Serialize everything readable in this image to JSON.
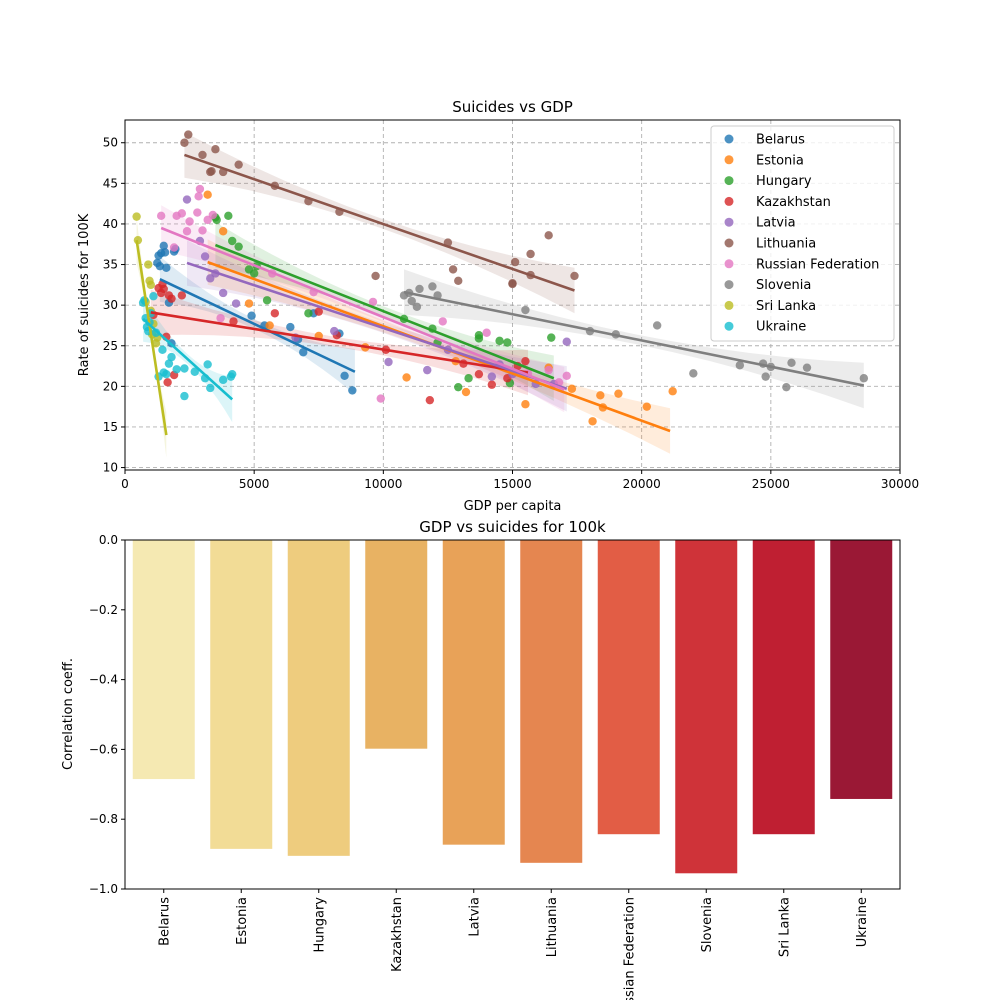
{
  "chart_data": [
    {
      "type": "scatter",
      "title": "Suicides vs GDP",
      "xlabel": "GDP per capita",
      "ylabel": "Rate of suicides for 100K",
      "xlim": [
        0,
        30000
      ],
      "ylim": [
        9.7,
        52.8
      ],
      "xticks": [
        0,
        5000,
        10000,
        15000,
        20000,
        25000,
        30000
      ],
      "yticks": [
        10,
        15,
        20,
        25,
        30,
        35,
        40,
        45,
        50
      ],
      "grid": true,
      "legend": "top-right",
      "series": [
        {
          "name": "Belarus",
          "color": "#1f77b4",
          "points": [
            [
              1250,
              35.2
            ],
            [
              1300,
              36.1
            ],
            [
              1350,
              34.8
            ],
            [
              1400,
              36.4
            ],
            [
              1500,
              37.3
            ],
            [
              1550,
              36.5
            ],
            [
              1600,
              34.6
            ],
            [
              1700,
              30.3
            ],
            [
              1800,
              25.3
            ],
            [
              1900,
              36.6
            ],
            [
              1950,
              36.9
            ],
            [
              4900,
              28.7
            ],
            [
              5400,
              27.5
            ],
            [
              6400,
              27.3
            ],
            [
              6700,
              25.8
            ],
            [
              6900,
              24.2
            ],
            [
              7300,
              29.0
            ],
            [
              8300,
              26.5
            ],
            [
              8500,
              21.3
            ],
            [
              8800,
              19.5
            ]
          ],
          "fit": {
            "x": [
              1350,
              8900
            ],
            "y": [
              33.2,
              21.8
            ]
          }
        },
        {
          "name": "Estonia",
          "color": "#ff7f0e",
          "points": [
            [
              3200,
              43.6
            ],
            [
              3800,
              39.1
            ],
            [
              4800,
              30.2
            ],
            [
              5600,
              27.5
            ],
            [
              7500,
              26.2
            ],
            [
              9300,
              24.8
            ],
            [
              10900,
              21.1
            ],
            [
              12800,
              23.1
            ],
            [
              13200,
              19.3
            ],
            [
              15500,
              17.8
            ],
            [
              16400,
              22.3
            ],
            [
              17300,
              19.7
            ],
            [
              18100,
              15.7
            ],
            [
              18400,
              18.9
            ],
            [
              18500,
              17.4
            ],
            [
              19100,
              19.1
            ],
            [
              20200,
              17.5
            ],
            [
              21200,
              19.4
            ]
          ],
          "fit": {
            "x": [
              3200,
              21100
            ],
            "y": [
              35.3,
              14.5
            ]
          }
        },
        {
          "name": "Hungary",
          "color": "#2ca02c",
          "points": [
            [
              3500,
              40.8
            ],
            [
              3550,
              40.5
            ],
            [
              4000,
              41.0
            ],
            [
              4150,
              37.9
            ],
            [
              4400,
              37.2
            ],
            [
              4800,
              34.4
            ],
            [
              5000,
              33.9
            ],
            [
              5100,
              34.8
            ],
            [
              5500,
              30.6
            ],
            [
              7100,
              29.0
            ],
            [
              10800,
              28.3
            ],
            [
              11900,
              27.1
            ],
            [
              12100,
              25.4
            ],
            [
              12900,
              19.9
            ],
            [
              13300,
              21.0
            ],
            [
              13700,
              25.9
            ],
            [
              13700,
              26.3
            ],
            [
              14500,
              25.6
            ],
            [
              14800,
              25.4
            ],
            [
              14900,
              20.4
            ],
            [
              16500,
              26.0
            ]
          ],
          "fit": {
            "x": [
              3500,
              16600
            ],
            "y": [
              37.4,
              21.0
            ]
          }
        },
        {
          "name": "Kazakhstan",
          "color": "#d62728",
          "points": [
            [
              1100,
              28.8
            ],
            [
              1300,
              32.1
            ],
            [
              1400,
              31.5
            ],
            [
              1450,
              32.6
            ],
            [
              1500,
              32.0
            ],
            [
              1600,
              26.1
            ],
            [
              1650,
              20.5
            ],
            [
              1700,
              31.2
            ],
            [
              1800,
              30.8
            ],
            [
              1900,
              21.4
            ],
            [
              2200,
              31.2
            ],
            [
              4200,
              28.0
            ],
            [
              5800,
              29.0
            ],
            [
              7500,
              29.2
            ],
            [
              8200,
              26.3
            ],
            [
              10100,
              24.5
            ],
            [
              11800,
              18.3
            ],
            [
              13100,
              22.8
            ],
            [
              13700,
              21.5
            ],
            [
              14200,
              20.2
            ],
            [
              14800,
              21.0
            ],
            [
              15200,
              22.5
            ],
            [
              15500,
              23.1
            ]
          ],
          "fit": {
            "x": [
              1000,
              15600
            ],
            "y": [
              29.1,
              21.7
            ]
          }
        },
        {
          "name": "Latvia",
          "color": "#9467bd",
          "points": [
            [
              2400,
              43.0
            ],
            [
              2900,
              37.9
            ],
            [
              3100,
              36.0
            ],
            [
              3300,
              33.3
            ],
            [
              3500,
              33.9
            ],
            [
              3800,
              31.5
            ],
            [
              4300,
              30.2
            ],
            [
              6600,
              26.0
            ],
            [
              8100,
              26.8
            ],
            [
              10200,
              23.0
            ],
            [
              11700,
              22.0
            ],
            [
              12500,
              24.5
            ],
            [
              14200,
              21.2
            ],
            [
              14500,
              22.7
            ],
            [
              15000,
              21.5
            ],
            [
              15900,
              20.3
            ],
            [
              16600,
              20.3
            ],
            [
              17100,
              25.5
            ]
          ],
          "fit": {
            "x": [
              2400,
              17100
            ],
            "y": [
              35.2,
              19.7
            ]
          }
        },
        {
          "name": "Lithuania",
          "color": "#8c564b",
          "points": [
            [
              2300,
              50.0
            ],
            [
              2450,
              51.0
            ],
            [
              3000,
              48.5
            ],
            [
              3300,
              46.4
            ],
            [
              3350,
              46.5
            ],
            [
              3500,
              49.2
            ],
            [
              3800,
              46.4
            ],
            [
              4400,
              47.3
            ],
            [
              5800,
              44.7
            ],
            [
              7100,
              42.8
            ],
            [
              8300,
              41.5
            ],
            [
              9700,
              33.6
            ],
            [
              12500,
              37.7
            ],
            [
              12700,
              34.4
            ],
            [
              12900,
              33.0
            ],
            [
              15000,
              32.7
            ],
            [
              15000,
              32.6
            ],
            [
              15100,
              35.3
            ],
            [
              15700,
              36.3
            ],
            [
              15700,
              33.7
            ],
            [
              16400,
              38.6
            ],
            [
              17400,
              33.6
            ]
          ],
          "fit": {
            "x": [
              2300,
              17400
            ],
            "y": [
              48.5,
              31.8
            ]
          }
        },
        {
          "name": "Russian Federation",
          "color": "#e377c2",
          "points": [
            [
              1400,
              41.0
            ],
            [
              1900,
              37.1
            ],
            [
              2000,
              41.0
            ],
            [
              2200,
              41.3
            ],
            [
              2400,
              39.1
            ],
            [
              2500,
              40.3
            ],
            [
              2800,
              41.4
            ],
            [
              2850,
              43.4
            ],
            [
              2900,
              44.3
            ],
            [
              3000,
              39.2
            ],
            [
              3200,
              40.5
            ],
            [
              3400,
              41.1
            ],
            [
              3700,
              28.4
            ],
            [
              5700,
              33.9
            ],
            [
              7300,
              31.6
            ],
            [
              9600,
              30.4
            ],
            [
              9900,
              18.5
            ],
            [
              12300,
              28.0
            ],
            [
              14000,
              26.6
            ],
            [
              15600,
              21.6
            ],
            [
              16400,
              22.0
            ],
            [
              16800,
              20.5
            ],
            [
              17100,
              21.3
            ]
          ],
          "fit": {
            "x": [
              1400,
              17000
            ],
            "y": [
              39.5,
              19.6
            ]
          }
        },
        {
          "name": "Slovenia",
          "color": "#7f7f7f",
          "points": [
            [
              10800,
              31.2
            ],
            [
              11000,
              31.5
            ],
            [
              11100,
              30.5
            ],
            [
              11300,
              29.8
            ],
            [
              11400,
              32.0
            ],
            [
              11900,
              32.3
            ],
            [
              12100,
              31.2
            ],
            [
              15500,
              29.4
            ],
            [
              18000,
              26.8
            ],
            [
              19000,
              26.4
            ],
            [
              20600,
              27.5
            ],
            [
              22000,
              21.6
            ],
            [
              23800,
              22.6
            ],
            [
              24700,
              22.8
            ],
            [
              24800,
              21.2
            ],
            [
              25000,
              22.4
            ],
            [
              25600,
              19.9
            ],
            [
              25800,
              22.9
            ],
            [
              26400,
              22.3
            ],
            [
              28600,
              21.0
            ]
          ],
          "fit": {
            "x": [
              10800,
              28600
            ],
            "y": [
              31.6,
              20.1
            ]
          }
        },
        {
          "name": "Sri Lanka",
          "color": "#bcbd22",
          "points": [
            [
              450,
              40.9
            ],
            [
              500,
              38.0
            ],
            [
              800,
              30.4
            ],
            [
              900,
              35.0
            ],
            [
              950,
              33.0
            ],
            [
              1000,
              32.5
            ],
            [
              1000,
              29.3
            ],
            [
              1050,
              26.4
            ],
            [
              1100,
              27.7
            ],
            [
              1200,
              25.3
            ],
            [
              1250,
              26.0
            ]
          ],
          "fit": {
            "x": [
              450,
              1600
            ],
            "y": [
              38.0,
              14.0
            ]
          }
        },
        {
          "name": "Ukraine",
          "color": "#17becf",
          "points": [
            [
              700,
              30.3
            ],
            [
              750,
              30.6
            ],
            [
              800,
              28.4
            ],
            [
              850,
              27.3
            ],
            [
              900,
              26.8
            ],
            [
              950,
              27.9
            ],
            [
              1000,
              29.0
            ],
            [
              1100,
              31.1
            ],
            [
              1200,
              26.6
            ],
            [
              1300,
              21.2
            ],
            [
              1450,
              24.5
            ],
            [
              1500,
              21.7
            ],
            [
              1600,
              21.5
            ],
            [
              1700,
              22.8
            ],
            [
              1800,
              23.6
            ],
            [
              2000,
              22.1
            ],
            [
              2300,
              22.2
            ],
            [
              2300,
              18.8
            ],
            [
              2700,
              21.8
            ],
            [
              3100,
              21.0
            ],
            [
              3200,
              22.7
            ],
            [
              3300,
              19.8
            ],
            [
              3800,
              20.8
            ],
            [
              4100,
              21.2
            ],
            [
              4150,
              21.5
            ]
          ],
          "fit": {
            "x": [
              700,
              4150
            ],
            "y": [
              28.3,
              18.4
            ]
          }
        }
      ]
    },
    {
      "type": "bar",
      "title": "GDP vs suicides for 100k",
      "xlabel": "",
      "ylabel": "Correlation coeff.",
      "ylim": [
        -1.0,
        0.0
      ],
      "yticks": [
        0.0,
        -0.2,
        -0.4,
        -0.6,
        -0.8,
        -1.0
      ],
      "ytick_labels": [
        "0.0",
        "−0.2",
        "−0.4",
        "−0.6",
        "−0.8",
        "−1.0"
      ],
      "categories": [
        "Belarus",
        "Estonia",
        "Hungary",
        "Kazakhstan",
        "Latvia",
        "Lithuania",
        "Russian Federation",
        "Slovenia",
        "Sri Lanka",
        "Ukraine"
      ],
      "values": [
        -0.685,
        -0.885,
        -0.905,
        -0.598,
        -0.873,
        -0.925,
        -0.843,
        -0.955,
        -0.843,
        -0.742
      ],
      "colors": [
        "#f5e9b2",
        "#f2dc96",
        "#eecc7e",
        "#e8b263",
        "#e8a258",
        "#e58650",
        "#e25d45",
        "#cf3339",
        "#bf1f32",
        "#9a1835"
      ]
    }
  ]
}
